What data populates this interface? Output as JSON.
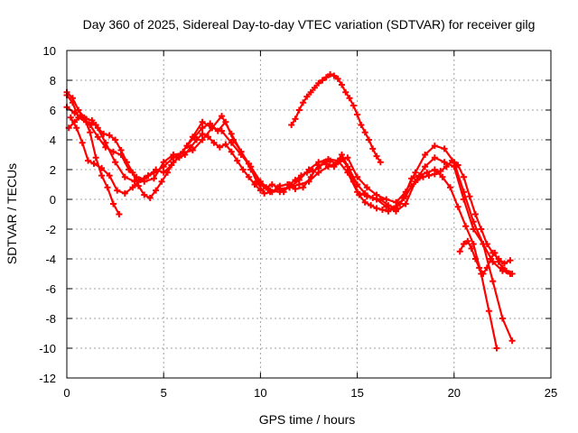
{
  "chart_data": {
    "type": "line",
    "title": "Day 360 of 2025, Sidereal Day-to-day VTEC variation (SDTVAR) for receiver gilg",
    "xlabel": "GPS time / hours",
    "ylabel": "SDTVAR / TECUs",
    "xlim": [
      0,
      25
    ],
    "ylim": [
      -12,
      10
    ],
    "xticks": [
      0,
      5,
      10,
      15,
      20,
      25
    ],
    "yticks": [
      -12,
      -10,
      -8,
      -6,
      -4,
      -2,
      0,
      2,
      4,
      6,
      8,
      10
    ],
    "grid": true,
    "marker": "plus",
    "color": "#ff0000",
    "series": [
      {
        "name": "s1",
        "x": [
          0,
          0.3,
          0.6,
          1.0,
          1.5,
          2.0,
          2.5,
          3.0,
          3.5,
          4.0,
          4.5,
          5.0,
          5.5,
          6.0,
          6.5,
          7.0,
          7.5,
          8.0,
          8.5,
          9.0,
          9.5,
          10.0,
          10.5,
          11.0,
          11.5,
          12.0,
          12.5,
          13.0,
          13.5,
          14.0,
          14.5,
          15.0,
          15.5,
          16.0,
          16.5,
          17.0,
          17.5,
          18.0,
          18.5,
          19.0,
          19.5,
          20.0,
          20.5,
          21.0,
          21.5,
          22.0,
          22.5,
          23.0
        ],
        "y": [
          7.0,
          6.5,
          5.5,
          5.2,
          5.0,
          3.8,
          2.5,
          1.5,
          1.2,
          1.4,
          1.8,
          2.2,
          2.8,
          3.2,
          4.2,
          5.2,
          4.8,
          5.6,
          4.4,
          3.2,
          2.0,
          1.0,
          0.5,
          0.7,
          0.8,
          1.3,
          2.0,
          2.5,
          2.7,
          2.6,
          1.8,
          0.5,
          0.2,
          0.0,
          -0.5,
          -0.8,
          -0.3,
          1.2,
          2.2,
          2.8,
          2.5,
          2.2,
          0.0,
          -2.0,
          -3.0,
          -4.2,
          -4.8,
          -5.0
        ]
      },
      {
        "name": "s2",
        "x": [
          0,
          0.4,
          0.8,
          1.2,
          1.6,
          2.0,
          2.4,
          2.8,
          3.2,
          3.6,
          4.0,
          4.5,
          5.0,
          5.5,
          6.0,
          6.5,
          7.0,
          7.5,
          8.0,
          8.5,
          9.0,
          9.5,
          10.0,
          10.5,
          11.0,
          11.5,
          12.0,
          12.5,
          13.0,
          13.5,
          14.0,
          14.5,
          15.0,
          15.5,
          16.0,
          16.5,
          17.0,
          17.5,
          18.0,
          18.5,
          19.0,
          19.5,
          20.0,
          20.5,
          21.0,
          21.5,
          22.0,
          22.5,
          23.0
        ],
        "y": [
          6.2,
          5.8,
          5.5,
          5.0,
          4.2,
          3.5,
          3.2,
          3.0,
          2.0,
          1.5,
          1.2,
          1.4,
          2.5,
          3.0,
          3.1,
          3.3,
          4.0,
          4.8,
          4.6,
          3.8,
          3.0,
          2.2,
          1.2,
          0.6,
          0.5,
          0.8,
          1.0,
          1.2,
          1.8,
          2.2,
          2.5,
          2.8,
          1.5,
          0.8,
          0.3,
          0.0,
          -0.2,
          0.5,
          1.8,
          3.0,
          3.6,
          3.4,
          2.5,
          0.5,
          -1.5,
          -3.0,
          -5.5,
          -8.0,
          -9.5
        ]
      },
      {
        "name": "s3",
        "x": [
          0.2,
          0.5,
          0.8,
          1.1,
          1.4,
          1.8,
          2.2,
          2.6,
          3.0,
          3.4,
          3.8,
          4.2,
          4.6,
          5.0,
          5.4,
          5.8,
          6.2,
          6.6,
          7.0,
          7.4,
          7.8,
          8.2,
          8.6,
          9.0,
          9.4,
          9.8,
          10.2,
          10.6,
          11.0,
          11.4,
          11.8,
          12.2,
          12.6,
          13.0,
          13.4,
          13.8,
          14.2,
          14.6,
          15.0,
          15.4,
          15.8,
          16.2,
          16.6,
          17.0,
          17.4,
          17.8,
          18.2,
          18.6,
          19.0,
          19.4,
          19.8,
          20.2,
          20.6,
          21.0,
          21.4,
          21.8,
          22.2
        ],
        "y": [
          5.5,
          4.8,
          3.8,
          2.6,
          2.4,
          2.1,
          1.6,
          0.6,
          0.4,
          0.8,
          1.3,
          1.6,
          2.0,
          1.8,
          2.3,
          2.9,
          3.6,
          4.2,
          4.8,
          5.1,
          4.6,
          5.2,
          4.0,
          3.2,
          2.4,
          1.2,
          0.4,
          0.5,
          0.9,
          1.0,
          0.7,
          0.8,
          1.5,
          2.3,
          2.4,
          2.2,
          3.0,
          2.0,
          1.0,
          0.4,
          0.1,
          0.0,
          -0.4,
          -0.6,
          0.1,
          1.4,
          1.6,
          1.8,
          2.0,
          1.5,
          0.8,
          -0.5,
          -1.8,
          -3.0,
          -5.0,
          -7.5,
          -10.0
        ]
      },
      {
        "name": "s4",
        "x": [
          0.1,
          0.4,
          0.7,
          1.0,
          1.3,
          1.6,
          1.9,
          2.2,
          2.5,
          2.8,
          3.1,
          3.4,
          3.7,
          4.0,
          4.3,
          4.6,
          4.9,
          5.2,
          5.5,
          5.8,
          6.1,
          6.4,
          6.7,
          7.0,
          7.3,
          7.6,
          7.9,
          8.2,
          8.5,
          8.8,
          9.1,
          9.4,
          9.7,
          10.0,
          10.3,
          10.6,
          10.9,
          11.2,
          11.5,
          11.8,
          12.1,
          12.4,
          12.7,
          13.0,
          13.3,
          13.6,
          13.9,
          14.2,
          14.5,
          14.8,
          15.1,
          15.4,
          15.7,
          16.0,
          16.3,
          16.6,
          16.9,
          17.2,
          17.5,
          17.8,
          18.1,
          18.4,
          18.7,
          19.0,
          19.3,
          19.6,
          19.9,
          20.2,
          20.5,
          20.8,
          21.1,
          21.4,
          21.7,
          22.0,
          22.3,
          22.6,
          22.9
        ],
        "y": [
          4.8,
          5.2,
          5.6,
          5.4,
          5.3,
          4.8,
          4.4,
          4.3,
          4.0,
          3.3,
          2.5,
          1.8,
          0.9,
          0.3,
          0.1,
          0.6,
          1.2,
          1.8,
          2.5,
          2.8,
          3.0,
          3.5,
          4.0,
          4.4,
          4.2,
          3.8,
          3.5,
          3.7,
          3.2,
          2.6,
          2.0,
          1.5,
          1.0,
          0.6,
          0.8,
          1.0,
          0.8,
          0.5,
          1.0,
          1.3,
          1.6,
          1.8,
          1.9,
          2.1,
          2.5,
          2.6,
          2.4,
          2.7,
          2.2,
          1.2,
          0.3,
          -0.2,
          -0.4,
          -0.6,
          -0.7,
          -0.8,
          -0.6,
          -0.3,
          0.2,
          0.9,
          1.3,
          1.5,
          1.6,
          1.7,
          1.9,
          2.2,
          2.6,
          2.3,
          1.5,
          0.2,
          -1.0,
          -2.0,
          -3.0,
          -3.6,
          -4.0,
          -4.3,
          -4.1
        ]
      },
      {
        "name": "s5",
        "x": [
          0,
          0.3,
          0.6,
          0.9,
          1.2,
          1.5,
          1.8,
          2.1,
          2.4,
          2.7
        ],
        "y": [
          7.2,
          6.8,
          6.0,
          5.5,
          4.5,
          2.8,
          1.6,
          0.8,
          -0.3,
          -1.0
        ]
      },
      {
        "name": "s6",
        "x": [
          11.6,
          11.8,
          12.0,
          12.2,
          12.4,
          12.6,
          12.8,
          13.0,
          13.2,
          13.4,
          13.6,
          13.8,
          14.0,
          14.2,
          14.4,
          14.6,
          14.8,
          15.0,
          15.2,
          15.4,
          15.6,
          15.8,
          16.0,
          16.2
        ],
        "y": [
          5.0,
          5.4,
          6.0,
          6.5,
          6.9,
          7.2,
          7.5,
          7.8,
          8.0,
          8.2,
          8.4,
          8.3,
          8.1,
          7.7,
          7.2,
          6.8,
          6.3,
          5.7,
          5.0,
          4.5,
          4.0,
          3.4,
          2.9,
          2.5
        ]
      },
      {
        "name": "s7",
        "x": [
          20.3,
          20.5,
          20.7,
          20.9,
          21.1,
          21.3,
          21.5,
          21.7,
          21.9,
          22.1,
          22.3,
          22.5,
          22.7,
          22.9
        ],
        "y": [
          -3.5,
          -3.0,
          -2.8,
          -3.3,
          -4.0,
          -4.6,
          -5.0,
          -4.6,
          -4.0,
          -3.6,
          -4.2,
          -4.6,
          -4.8,
          -5.0
        ]
      }
    ]
  }
}
